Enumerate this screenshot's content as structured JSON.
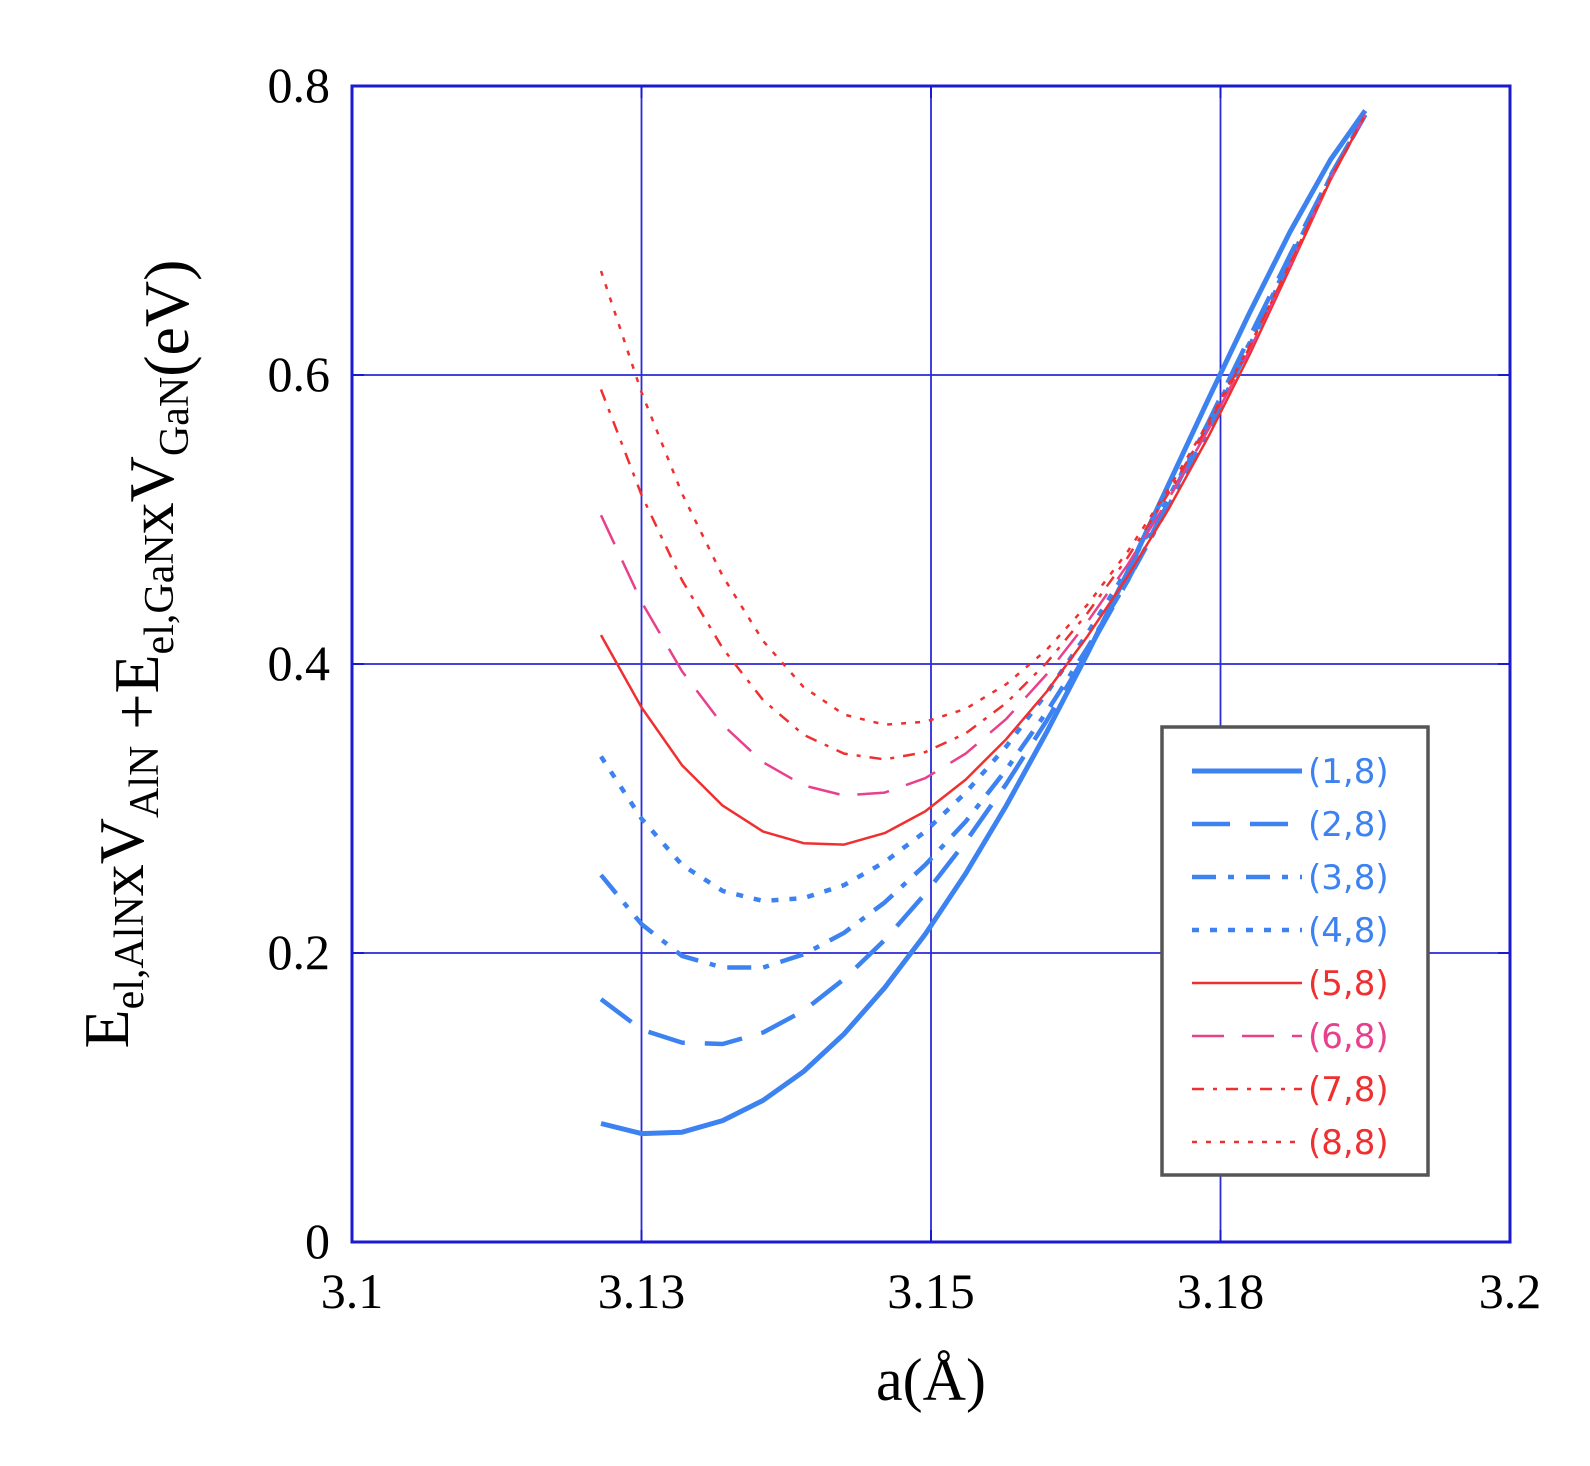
{
  "chart_data": {
    "type": "line",
    "title": "",
    "xlabel": "a(Å)",
    "ylabel_parts": [
      {
        "t": "E",
        "s": "n"
      },
      {
        "t": "el,AlN",
        "s": "sub"
      },
      {
        "t": "x",
        "s": "n"
      },
      {
        "t": "V",
        "s": "n"
      },
      {
        "t": "AlN",
        "s": "sub"
      },
      {
        "t": " +E",
        "s": "n"
      },
      {
        "t": "el,GaN",
        "s": "sub"
      },
      {
        "t": "x",
        "s": "n"
      },
      {
        "t": "V",
        "s": "n"
      },
      {
        "t": "GaN",
        "s": "sub"
      },
      {
        "t": "(eV)",
        "s": "n"
      }
    ],
    "xlim": [
      3.1,
      3.2
    ],
    "ylim": [
      0,
      0.8
    ],
    "xticks": [
      3.1,
      3.125,
      3.15,
      3.175,
      3.2
    ],
    "xtick_labels": [
      "3.1",
      "3.13",
      "3.15",
      "3.18",
      "3.2"
    ],
    "yticks": [
      0,
      0.2,
      0.4,
      0.6,
      0.8
    ],
    "ytick_labels": [
      "0",
      "0.2",
      "0.4",
      "0.6",
      "0.8"
    ],
    "grid": true,
    "legend_position": "lower-right",
    "series": [
      {
        "name": "(1,8)",
        "color": "#3c82f0",
        "dash": "",
        "x": [
          3.1215,
          3.125,
          3.1285,
          3.132,
          3.1355,
          3.139,
          3.1425,
          3.146,
          3.1495,
          3.153,
          3.1565,
          3.16,
          3.1635,
          3.167,
          3.1705,
          3.174,
          3.1775,
          3.181,
          3.1845,
          3.1875
        ],
        "y": [
          0.082,
          0.075,
          0.076,
          0.084,
          0.098,
          0.118,
          0.144,
          0.176,
          0.213,
          0.255,
          0.302,
          0.353,
          0.407,
          0.464,
          0.524,
          0.584,
          0.643,
          0.699,
          0.749,
          0.783
        ]
      },
      {
        "name": "(2,8)",
        "color": "#3c82f0",
        "dash": "",
        "x": [
          3.1215,
          3.125,
          3.1285,
          3.132,
          3.1355,
          3.139,
          3.1425,
          3.146,
          3.1495,
          3.153,
          3.1565,
          3.16,
          3.1635,
          3.167,
          3.1705,
          3.174,
          3.1775,
          3.181,
          3.1845,
          3.1875
        ],
        "y": [
          0.168,
          0.147,
          0.138,
          0.137,
          0.145,
          0.16,
          0.182,
          0.209,
          0.241,
          0.277,
          0.317,
          0.361,
          0.408,
          0.458,
          0.512,
          0.568,
          0.626,
          0.683,
          0.738,
          0.78
        ]
      },
      {
        "name": "(3,8)",
        "color": "#3c82f0",
        "dash": "",
        "x": [
          3.1215,
          3.125,
          3.1285,
          3.132,
          3.1355,
          3.139,
          3.1425,
          3.146,
          3.1495,
          3.153,
          3.1565,
          3.16,
          3.1635,
          3.167,
          3.1705,
          3.174,
          3.1775,
          3.181,
          3.1845,
          3.1875
        ],
        "y": [
          0.254,
          0.22,
          0.198,
          0.19,
          0.19,
          0.199,
          0.214,
          0.235,
          0.261,
          0.291,
          0.327,
          0.367,
          0.411,
          0.458,
          0.509,
          0.563,
          0.62,
          0.679,
          0.737,
          0.78
        ]
      },
      {
        "name": "(4,8)",
        "color": "#3c82f0",
        "dash": "",
        "x": [
          3.1215,
          3.125,
          3.1285,
          3.132,
          3.1355,
          3.139,
          3.1425,
          3.146,
          3.1495,
          3.153,
          3.1565,
          3.16,
          3.1635,
          3.167,
          3.1705,
          3.174,
          3.1775,
          3.181,
          3.1845,
          3.1875
        ],
        "y": [
          0.336,
          0.293,
          0.261,
          0.243,
          0.236,
          0.238,
          0.247,
          0.263,
          0.284,
          0.311,
          0.343,
          0.38,
          0.421,
          0.466,
          0.515,
          0.567,
          0.622,
          0.68,
          0.737,
          0.78
        ]
      },
      {
        "name": "(5,8)",
        "color": "#f03030",
        "dash": "",
        "x": [
          3.1215,
          3.125,
          3.1285,
          3.132,
          3.1355,
          3.139,
          3.1425,
          3.146,
          3.1495,
          3.153,
          3.1565,
          3.16,
          3.1635,
          3.167,
          3.1705,
          3.174,
          3.1775,
          3.181,
          3.1845,
          3.1875
        ],
        "y": [
          0.42,
          0.37,
          0.33,
          0.302,
          0.284,
          0.276,
          0.275,
          0.283,
          0.298,
          0.32,
          0.348,
          0.381,
          0.419,
          0.461,
          0.507,
          0.558,
          0.614,
          0.674,
          0.735,
          0.78
        ]
      },
      {
        "name": "(6,8)",
        "color": "#e8408c",
        "dash": "",
        "x": [
          3.1215,
          3.125,
          3.1285,
          3.132,
          3.1355,
          3.139,
          3.1425,
          3.146,
          3.1495,
          3.153,
          3.1565,
          3.16,
          3.1635,
          3.167,
          3.1705,
          3.174,
          3.1775,
          3.181,
          3.1845,
          3.1875
        ],
        "y": [
          0.503,
          0.443,
          0.395,
          0.358,
          0.332,
          0.316,
          0.309,
          0.311,
          0.321,
          0.338,
          0.362,
          0.393,
          0.429,
          0.469,
          0.514,
          0.563,
          0.617,
          0.676,
          0.736,
          0.78
        ]
      },
      {
        "name": "(7,8)",
        "color": "#f03030",
        "dash": "",
        "x": [
          3.1215,
          3.125,
          3.1285,
          3.132,
          3.1355,
          3.139,
          3.1425,
          3.146,
          3.1495,
          3.153,
          3.1565,
          3.16,
          3.1635,
          3.167,
          3.1705,
          3.174,
          3.1775,
          3.181,
          3.1845,
          3.1875
        ],
        "y": [
          0.59,
          0.517,
          0.458,
          0.411,
          0.375,
          0.351,
          0.338,
          0.334,
          0.339,
          0.352,
          0.373,
          0.401,
          0.435,
          0.474,
          0.518,
          0.566,
          0.619,
          0.677,
          0.736,
          0.78
        ]
      },
      {
        "name": "(8,8)",
        "color": "#f03030",
        "dash": "",
        "x": [
          3.1215,
          3.125,
          3.1285,
          3.132,
          3.1355,
          3.139,
          3.1425,
          3.146,
          3.1495,
          3.153,
          3.1565,
          3.16,
          3.1635,
          3.167,
          3.1705,
          3.174,
          3.1775,
          3.181,
          3.1845,
          3.1875
        ],
        "y": [
          0.672,
          0.588,
          0.518,
          0.461,
          0.416,
          0.384,
          0.365,
          0.358,
          0.36,
          0.369,
          0.386,
          0.41,
          0.441,
          0.478,
          0.521,
          0.568,
          0.62,
          0.677,
          0.736,
          0.78
        ]
      }
    ]
  }
}
